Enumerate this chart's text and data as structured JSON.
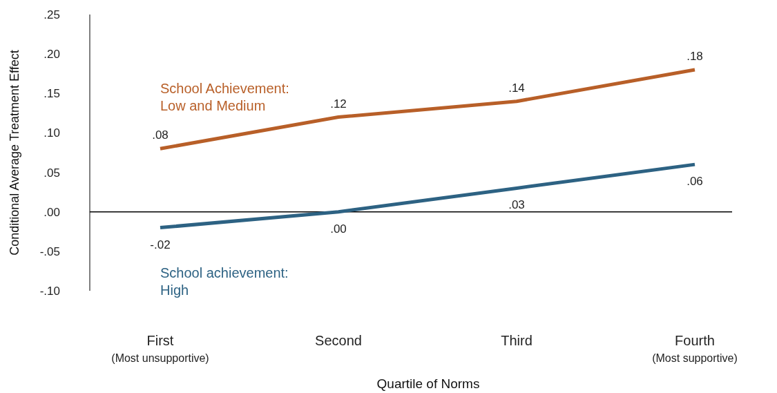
{
  "chart_data": {
    "type": "line",
    "xlabel": "Quartile of Norms",
    "ylabel": "Conditional Average Treatment Effect",
    "categories": [
      "First\n(Most unsupportive)",
      "Second",
      "Third",
      "Fourth\n(Most supportive)"
    ],
    "ylim": [
      -0.1,
      0.25
    ],
    "yticks": [
      {
        "value": -0.1,
        "label": "-.10"
      },
      {
        "value": -0.05,
        "label": "-.05"
      },
      {
        "value": 0,
        "label": ".00"
      },
      {
        "value": 0.05,
        "label": ".05"
      },
      {
        "value": 0.1,
        "label": ".10"
      },
      {
        "value": 0.15,
        "label": ".15"
      },
      {
        "value": 0.2,
        "label": ".20"
      },
      {
        "value": 0.25,
        "label": ".25"
      }
    ],
    "ref_lines": [
      {
        "axis": "y",
        "value": 0,
        "color": "#000000"
      }
    ],
    "grid": false,
    "series": [
      {
        "name": "School Achievement:\nLow and Medium",
        "color": "#b85f28",
        "values": [
          0.08,
          0.12,
          0.14,
          0.18
        ],
        "value_labels": [
          ".08",
          ".12",
          ".14",
          ".18"
        ]
      },
      {
        "name": "School achievement:\nHigh",
        "color": "#2d6283",
        "values": [
          -0.02,
          0.0,
          0.03,
          0.06
        ],
        "value_labels": [
          "-.02",
          ".00",
          ".03",
          ".06"
        ]
      }
    ]
  }
}
